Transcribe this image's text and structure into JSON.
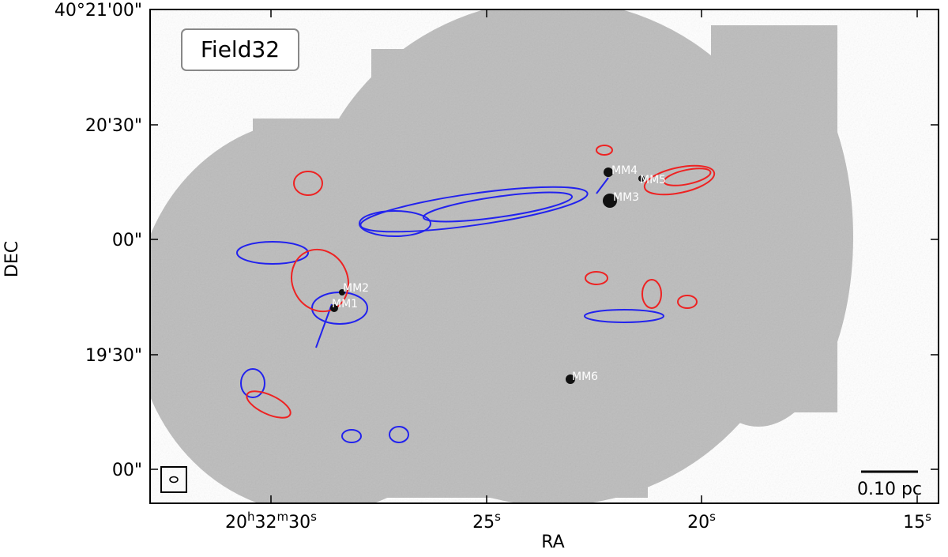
{
  "figure": {
    "field_label": "Field32",
    "xlabel": "RA",
    "ylabel": "DEC",
    "xticks": [
      "20h32m30s",
      "25s",
      "20s",
      "15s"
    ],
    "yticks": [
      "40°21'00\"",
      "20'30\"",
      "00\"",
      "19'30\"",
      "00\""
    ],
    "sources": [
      "MM1",
      "MM2",
      "MM3",
      "MM4",
      "MM5",
      "MM6"
    ],
    "scale_bar": "0.10 pc"
  }
}
